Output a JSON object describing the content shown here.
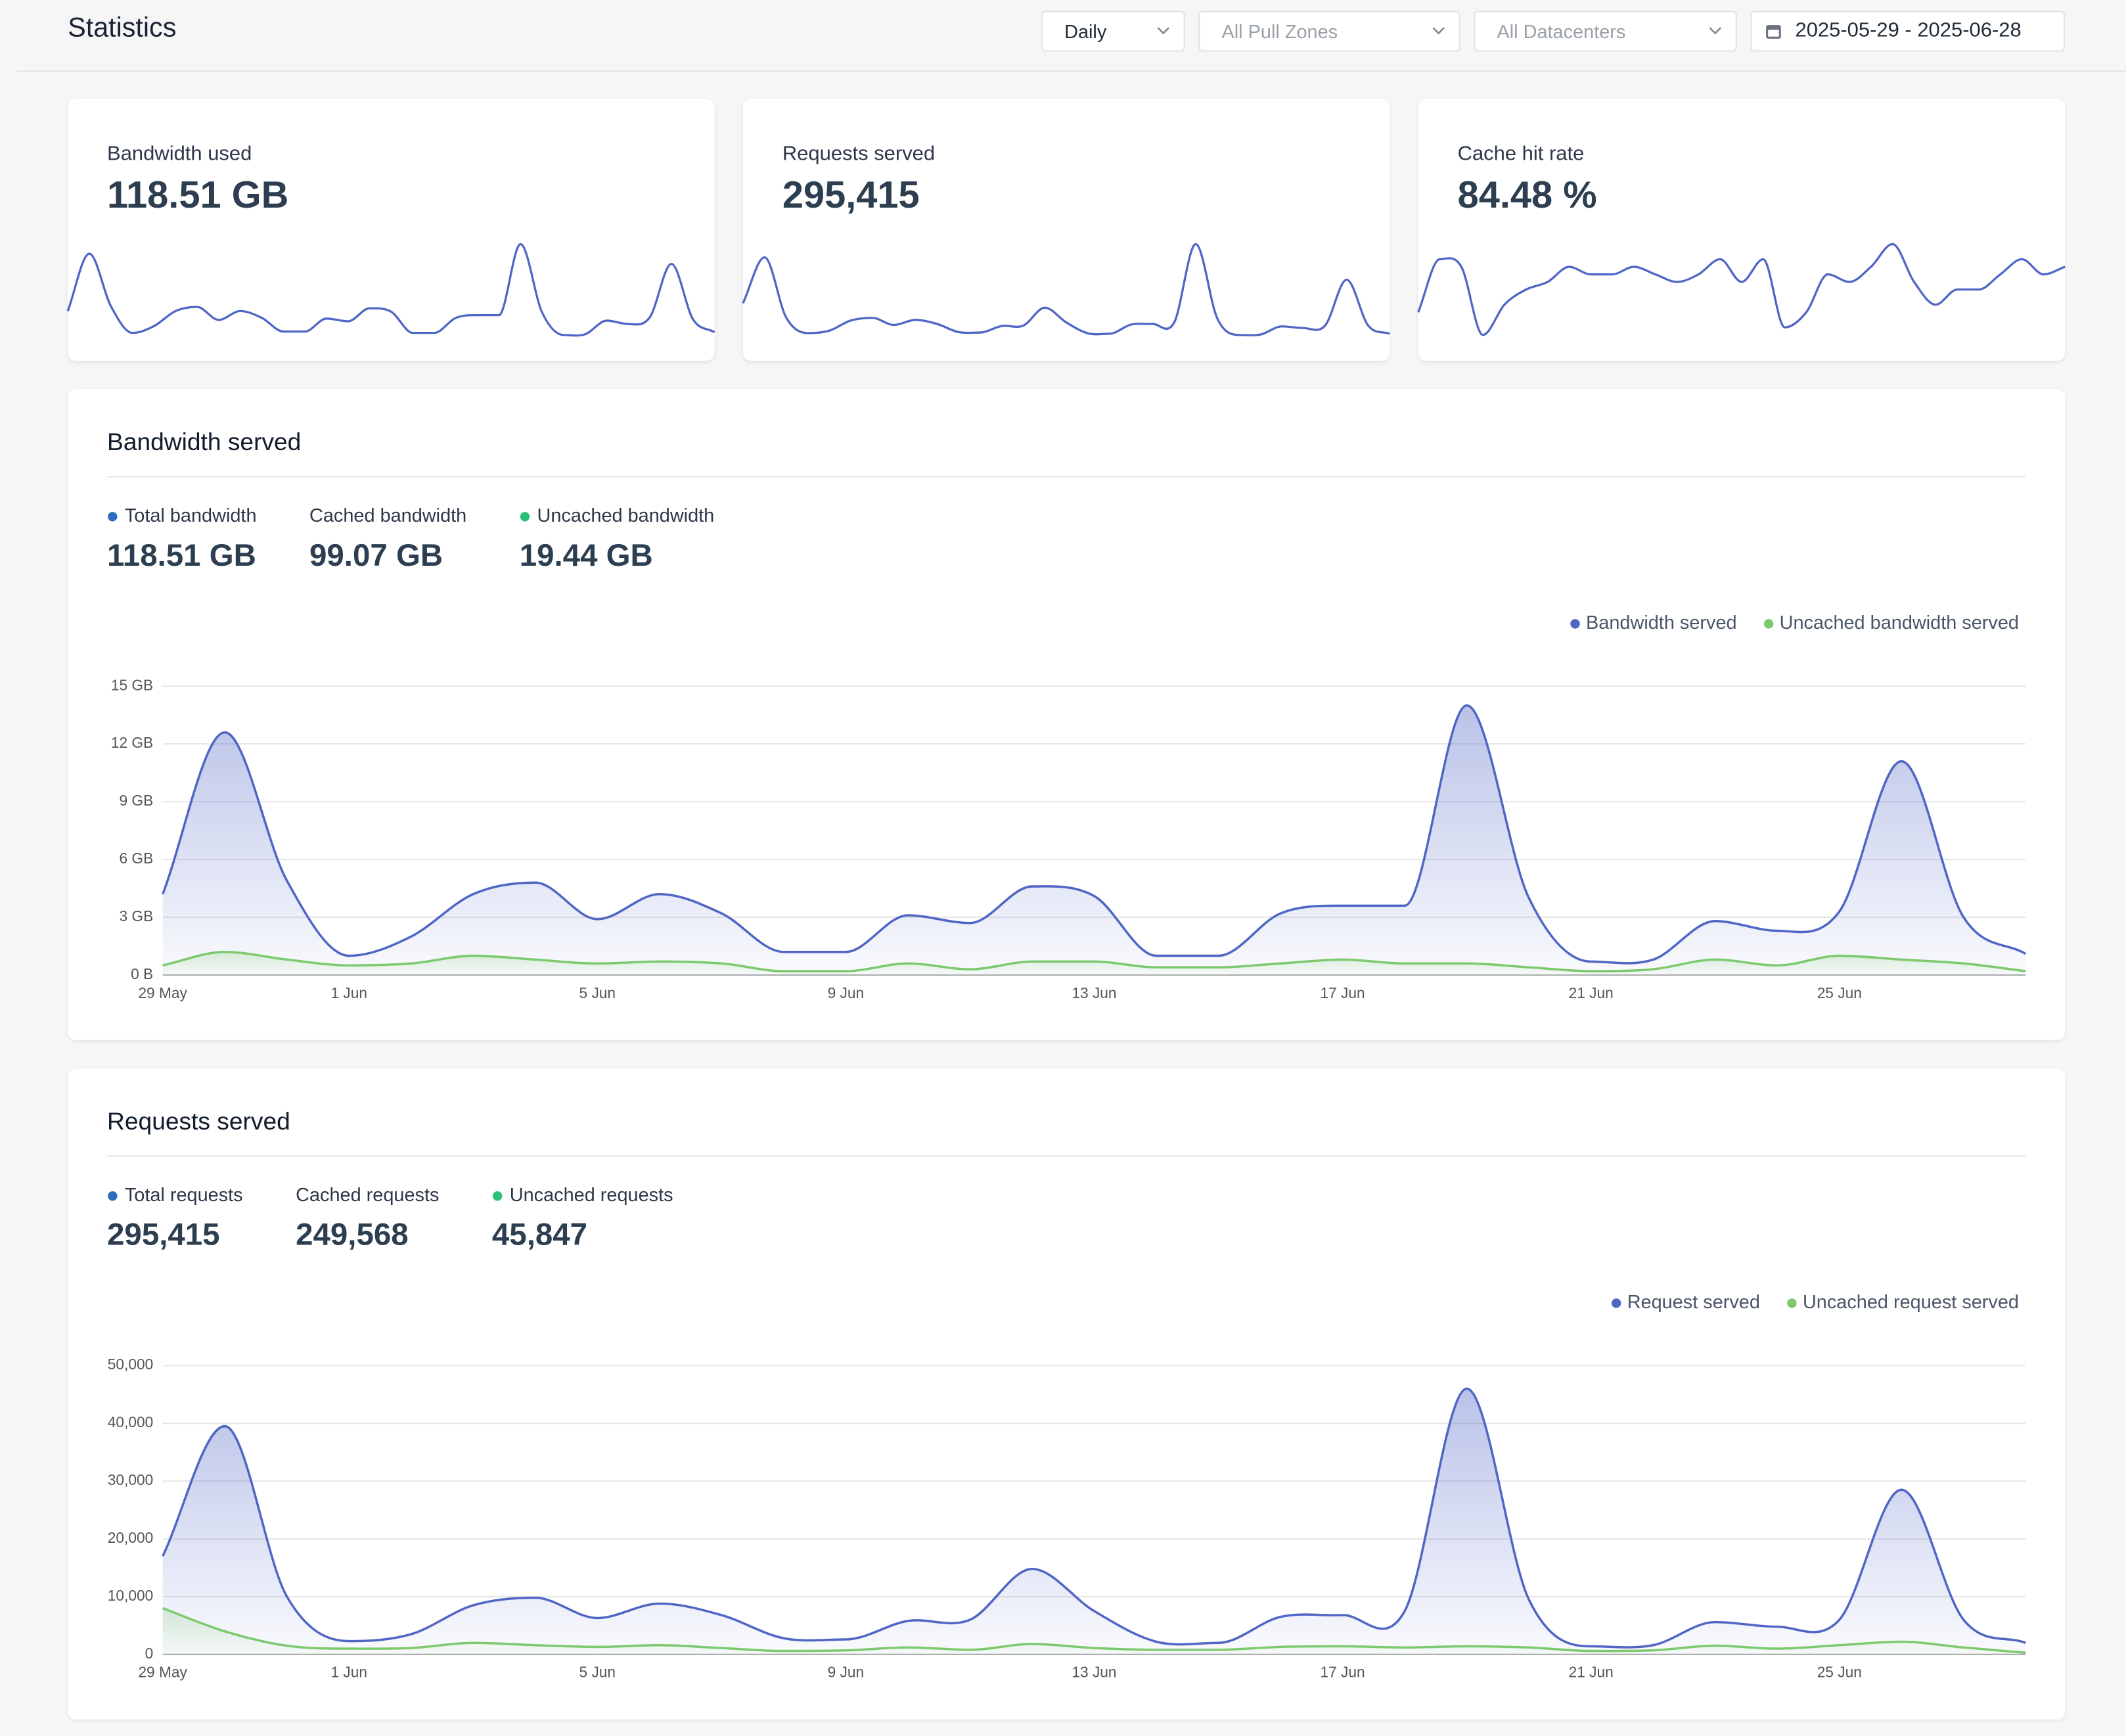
{
  "header": {
    "title": "Statistics",
    "filters": [
      "Daily",
      "All Pull Zones",
      "All Datacenters",
      "2025-05-29 - 2025-06-28"
    ]
  },
  "cards": [
    {
      "label": "Bandwidth used",
      "value": "118.51 GB"
    },
    {
      "label": "Requests served",
      "value": "295,415"
    },
    {
      "label": "Cache hit rate",
      "value": "84.48 %",
      "trend": [
        79,
        86,
        85,
        76,
        80,
        82,
        83,
        85,
        84,
        84,
        85,
        84,
        83,
        84,
        86,
        83,
        86,
        77,
        79,
        84,
        83,
        85,
        88,
        83,
        80,
        82,
        82,
        84,
        86,
        84,
        85
      ]
    }
  ],
  "chart_data": [
    {
      "type": "area",
      "title": "Bandwidth served",
      "stats": [
        {
          "label": "Total bandwidth",
          "value": "118.51 GB",
          "color": "#2a6fbd"
        },
        {
          "label": "Cached bandwidth",
          "value": "99.07 GB"
        },
        {
          "label": "Uncached bandwidth",
          "value": "19.44 GB",
          "color": "#2bbf7a"
        }
      ],
      "categories": [
        "29 May",
        null,
        null,
        "1 Jun",
        null,
        null,
        null,
        "5 Jun",
        null,
        null,
        null,
        "9 Jun",
        null,
        null,
        null,
        "13 Jun",
        null,
        null,
        null,
        "17 Jun",
        null,
        null,
        null,
        "21 Jun",
        null,
        null,
        null,
        "25 Jun",
        null,
        null,
        null
      ],
      "series": [
        {
          "name": "Bandwidth served",
          "color": "#5066c5",
          "values": [
            4.2,
            12.6,
            4.9,
            1.0,
            2.0,
            4.2,
            4.8,
            2.9,
            4.2,
            3.2,
            1.2,
            1.2,
            3.1,
            2.7,
            4.6,
            4.1,
            1.0,
            1.0,
            3.2,
            3.6,
            3.6,
            14.0,
            4.0,
            0.7,
            0.8,
            2.8,
            2.3,
            3.3,
            11.1,
            3.0,
            1.1
          ]
        },
        {
          "name": "Uncached bandwidth served",
          "color": "#7cc96e",
          "values": [
            0.5,
            1.2,
            0.8,
            0.5,
            0.6,
            1.0,
            0.8,
            0.6,
            0.7,
            0.6,
            0.2,
            0.2,
            0.6,
            0.3,
            0.7,
            0.7,
            0.4,
            0.4,
            0.6,
            0.8,
            0.6,
            0.6,
            0.4,
            0.2,
            0.3,
            0.8,
            0.5,
            1.0,
            0.8,
            0.6,
            0.2
          ]
        }
      ],
      "ylim": [
        0,
        15
      ],
      "yticks": [
        {
          "value": 0,
          "label": "0 B"
        },
        {
          "value": 3,
          "label": "3 GB"
        },
        {
          "value": 6,
          "label": "6 GB"
        },
        {
          "value": 9,
          "label": "9 GB"
        },
        {
          "value": 12,
          "label": "12 GB"
        },
        {
          "value": 15,
          "label": "15 GB"
        }
      ],
      "grid": true,
      "legend": "top-right"
    },
    {
      "type": "area",
      "title": "Requests served",
      "stats": [
        {
          "label": "Total requests",
          "value": "295,415",
          "color": "#2a6fbd"
        },
        {
          "label": "Cached requests",
          "value": "249,568"
        },
        {
          "label": "Uncached requests",
          "value": "45,847",
          "color": "#2bbf7a"
        }
      ],
      "categories": [
        "29 May",
        null,
        null,
        "1 Jun",
        null,
        null,
        null,
        "5 Jun",
        null,
        null,
        null,
        "9 Jun",
        null,
        null,
        null,
        "13 Jun",
        null,
        null,
        null,
        "17 Jun",
        null,
        null,
        null,
        "21 Jun",
        null,
        null,
        null,
        "25 Jun",
        null,
        null,
        null
      ],
      "series": [
        {
          "name": "Request served",
          "color": "#5066c5",
          "values": [
            17000,
            39500,
            10000,
            2300,
            3500,
            8500,
            9800,
            6300,
            8800,
            6800,
            2800,
            2600,
            5800,
            6000,
            14800,
            7500,
            2200,
            2000,
            6500,
            6800,
            7500,
            46000,
            9500,
            1400,
            1600,
            5600,
            4800,
            6000,
            28500,
            6000,
            2000
          ]
        },
        {
          "name": "Uncached request served",
          "color": "#7cc96e",
          "values": [
            8000,
            4000,
            1500,
            1000,
            1100,
            2000,
            1600,
            1300,
            1600,
            1100,
            600,
            700,
            1200,
            800,
            1800,
            1100,
            800,
            800,
            1300,
            1400,
            1200,
            1400,
            1200,
            600,
            700,
            1500,
            1000,
            1600,
            2200,
            1200,
            300
          ]
        }
      ],
      "ylim": [
        0,
        50000
      ],
      "yticks": [
        0,
        {
          "value": 10000,
          "label": "10,000"
        },
        {
          "value": 20000,
          "label": "20,000"
        },
        {
          "value": 30000,
          "label": "30,000"
        },
        {
          "value": 40000,
          "label": "40,000"
        },
        {
          "value": 50000,
          "label": "50,000"
        }
      ],
      "grid": true,
      "legend": "top-right"
    }
  ]
}
